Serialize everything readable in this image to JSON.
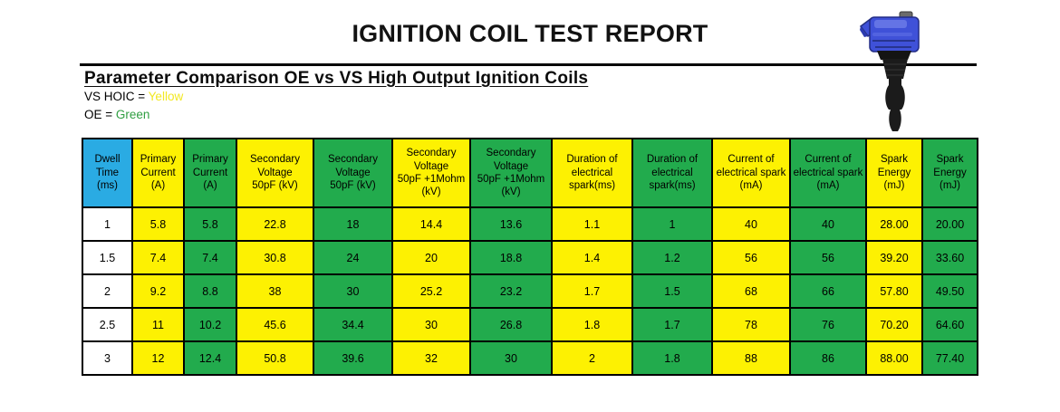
{
  "page": {
    "title": "IGNITION COIL TEST REPORT"
  },
  "section": {
    "heading": "Parameter Comparison OE vs VS High Output Ignition Coils",
    "legend": [
      {
        "label": "VS HOIC =",
        "value": "Yellow",
        "value_color": "#f2e822"
      },
      {
        "label": "OE =",
        "value": "Green",
        "value_color": "#2f9e41"
      }
    ]
  },
  "colors": {
    "vs_hoic_cell": "#fdf102",
    "oe_cell": "#22ab4d",
    "dwell_header_cell": "#2aabe3",
    "grid_border": "#000000"
  },
  "icons": {
    "coil": "ignition-coil-icon"
  },
  "table": {
    "columns": [
      {
        "label": "Dwell\nTime\n(ms)",
        "variant": "blue"
      },
      {
        "label": "Primary\nCurrent\n(A)",
        "variant": "yellow"
      },
      {
        "label": "Primary\nCurrent\n(A)",
        "variant": "green"
      },
      {
        "label": "Secondary\nVoltage\n50pF (kV)",
        "variant": "yellow"
      },
      {
        "label": "Secondary\nVoltage\n50pF (kV)",
        "variant": "green"
      },
      {
        "label": "Secondary\nVoltage\n50pF +1Mohm\n(kV)",
        "variant": "yellow"
      },
      {
        "label": "Secondary\nVoltage\n50pF +1Mohm\n(kV)",
        "variant": "green"
      },
      {
        "label": "Duration of\nelectrical\nspark(ms)",
        "variant": "yellow"
      },
      {
        "label": "Duration of\nelectrical\nspark(ms)",
        "variant": "green"
      },
      {
        "label": "Current of\nelectrical spark\n(mA)",
        "variant": "yellow"
      },
      {
        "label": "Current of\nelectrical spark\n(mA)",
        "variant": "green"
      },
      {
        "label": "Spark\nEnergy\n(mJ)",
        "variant": "yellow"
      },
      {
        "label": "Spark\nEnergy\n(mJ)",
        "variant": "green"
      }
    ],
    "rows": [
      [
        "1",
        "5.8",
        "5.8",
        "22.8",
        "18",
        "14.4",
        "13.6",
        "1.1",
        "1",
        "40",
        "40",
        "28.00",
        "20.00"
      ],
      [
        "1.5",
        "7.4",
        "7.4",
        "30.8",
        "24",
        "20",
        "18.8",
        "1.4",
        "1.2",
        "56",
        "56",
        "39.20",
        "33.60"
      ],
      [
        "2",
        "9.2",
        "8.8",
        "38",
        "30",
        "25.2",
        "23.2",
        "1.7",
        "1.5",
        "68",
        "66",
        "57.80",
        "49.50"
      ],
      [
        "2.5",
        "11",
        "10.2",
        "45.6",
        "34.4",
        "30",
        "26.8",
        "1.8",
        "1.7",
        "78",
        "76",
        "70.20",
        "64.60"
      ],
      [
        "3",
        "12",
        "12.4",
        "50.8",
        "39.6",
        "32",
        "30",
        "2",
        "1.8",
        "88",
        "86",
        "88.00",
        "77.40"
      ]
    ]
  }
}
